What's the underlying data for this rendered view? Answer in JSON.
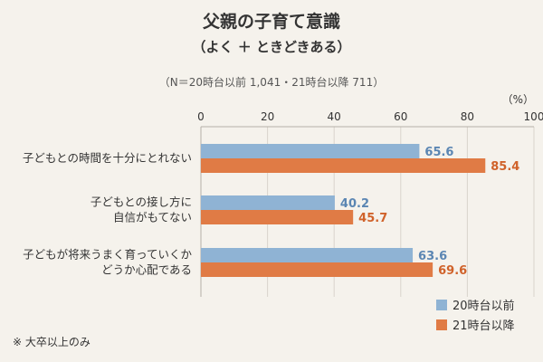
{
  "chart_data": {
    "type": "bar",
    "orientation": "horizontal",
    "title": "父親の子育て意識",
    "subtitle": "（よく ＋ ときどきある）",
    "note": "（N＝20時台以前 1,041・21時台以降 711）",
    "unit": "（%）",
    "footnote": "※ 大卒以上のみ",
    "xlim": [
      0,
      100
    ],
    "ticks": [
      0,
      20,
      40,
      60,
      80,
      100
    ],
    "grid": true,
    "legend_position": "bottom-right",
    "categories": [
      [
        "子どもとの時間を十分にとれない"
      ],
      [
        "子どもとの接し方に",
        "自信がもてない"
      ],
      [
        "子どもが将来うまく育っていくか",
        "どうか心配である"
      ]
    ],
    "series": [
      {
        "name": "20時台以前",
        "color": "#8fb3d4",
        "label_color": "#5b86b3",
        "values": [
          65.6,
          40.2,
          63.6
        ]
      },
      {
        "name": "21時台以降",
        "color": "#e07b45",
        "label_color": "#d0622a",
        "values": [
          85.4,
          45.7,
          69.6
        ]
      }
    ]
  }
}
